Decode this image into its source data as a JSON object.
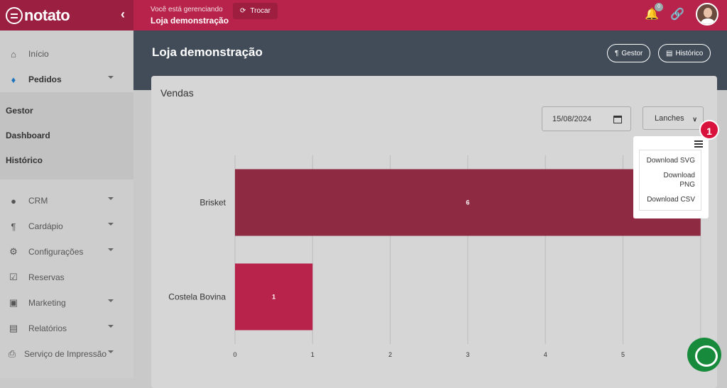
{
  "brand": {
    "name": "notato",
    "accent": "#b7234a"
  },
  "topbar": {
    "managing_label": "Você está gerenciando",
    "store_name": "Loja demonstração",
    "swap_label": "Trocar",
    "notification_count": "0"
  },
  "sidebar": {
    "items": [
      {
        "label": "Início",
        "icon": "home-icon"
      },
      {
        "label": "Pedidos",
        "icon": "bell-icon"
      }
    ],
    "pedidos_submenu": [
      "Gestor",
      "Dashboard",
      "Histórico"
    ],
    "items2": [
      {
        "label": "CRM",
        "icon": "users-icon"
      },
      {
        "label": "Cardápio",
        "icon": "utensils-icon"
      },
      {
        "label": "Configurações",
        "icon": "gear-icon"
      },
      {
        "label": "Reservas",
        "icon": "calendar-check-icon"
      },
      {
        "label": "Marketing",
        "icon": "ad-icon"
      },
      {
        "label": "Relatórios",
        "icon": "report-icon"
      },
      {
        "label": "Serviço de Impressão",
        "icon": "printer-icon"
      }
    ]
  },
  "header": {
    "title": "Loja demonstração",
    "btn_gestor": "Gestor",
    "btn_historico": "Histórico"
  },
  "card": {
    "title": "Vendas",
    "date_value": "15/08/2024",
    "category_select": "Lanches"
  },
  "chart_menu": {
    "items": [
      "Download SVG",
      "Download PNG",
      "Download CSV"
    ],
    "step_badge": "1"
  },
  "chart_data": {
    "type": "bar",
    "orientation": "horizontal",
    "categories": [
      "Brisket",
      "Costela Bovina"
    ],
    "values": [
      6,
      1
    ],
    "xlim": [
      0,
      6
    ],
    "xticks": [
      0,
      1,
      2,
      3,
      4,
      5
    ],
    "bar_color": "#8e2b42",
    "bar_color_2": "#b7234a",
    "grid": true
  }
}
